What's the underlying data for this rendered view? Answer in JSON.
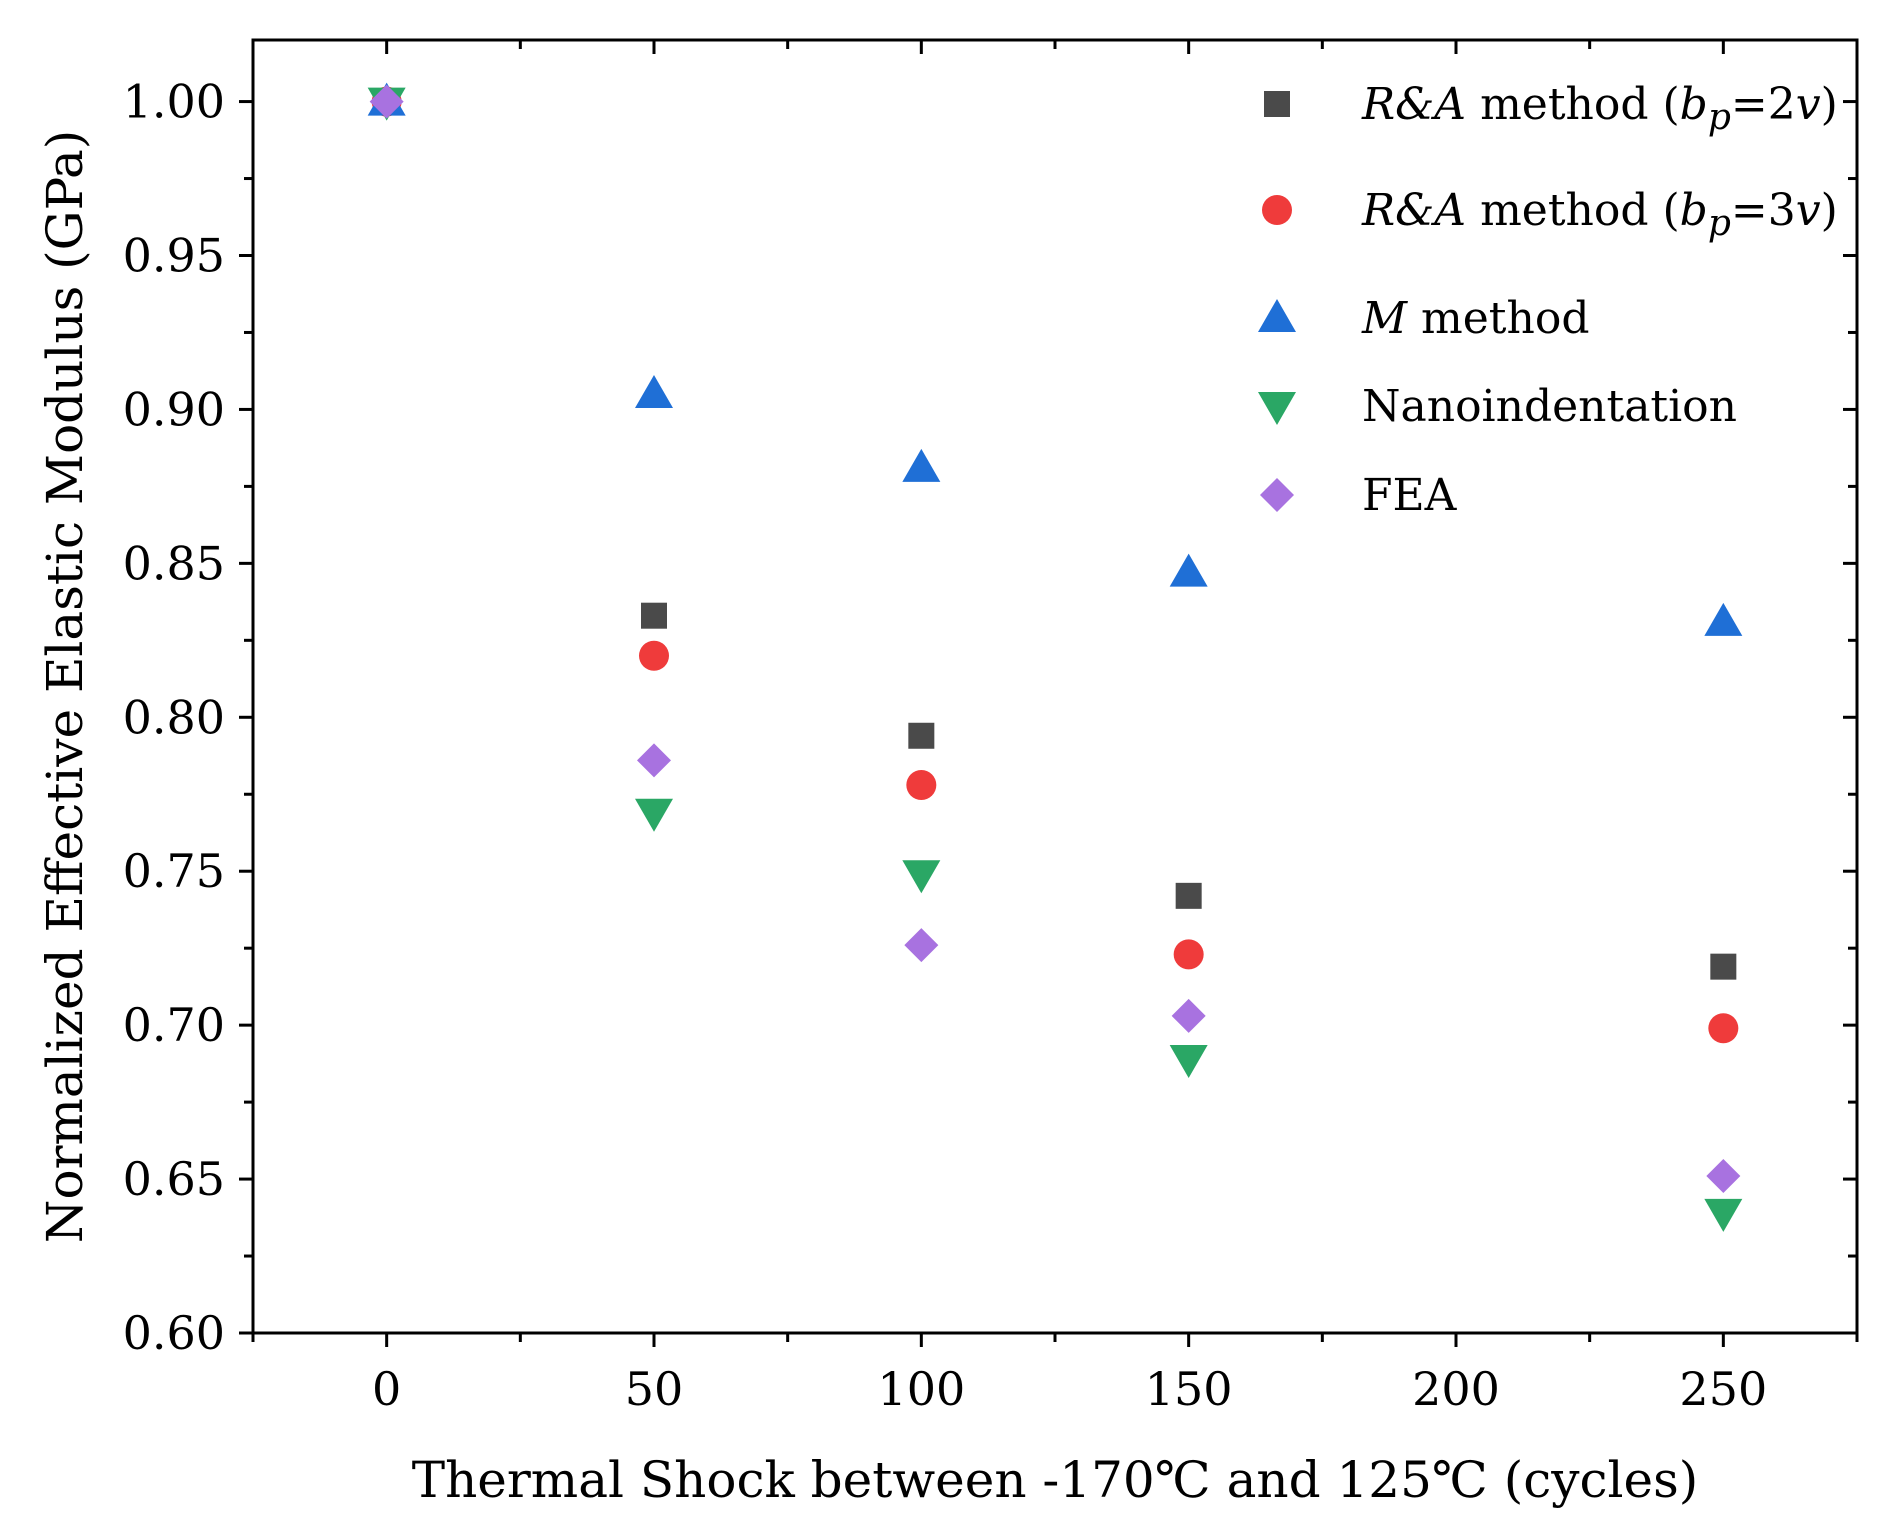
{
  "chart_data": {
    "type": "scatter",
    "title": "",
    "xlabel": "Thermal Shock between -170℃ and 125℃ (cycles)",
    "ylabel": "Normalized Effective Elastic Modulus (GPa)",
    "xlim": [
      -25,
      275
    ],
    "ylim": [
      0.6,
      1.02
    ],
    "x_ticks": [
      0,
      50,
      100,
      150,
      200,
      250
    ],
    "x_tick_labels": [
      "0",
      "50",
      "100",
      "150",
      "200",
      "250"
    ],
    "y_ticks": [
      0.6,
      0.65,
      0.7,
      0.75,
      0.8,
      0.85,
      0.9,
      0.95,
      1.0
    ],
    "y_tick_labels": [
      "0.60",
      "0.65",
      "0.70",
      "0.75",
      "0.80",
      "0.85",
      "0.90",
      "0.95",
      "1.00"
    ],
    "grid": false,
    "legend_position": "top-right",
    "series": [
      {
        "name": "R&A method (bp=2v)",
        "label_parts": [
          {
            "text": "R&A",
            "style": "italic"
          },
          {
            "text": " method (",
            "style": "normal"
          },
          {
            "text": "b",
            "style": "italic"
          },
          {
            "text": "p",
            "style": "italic-sub"
          },
          {
            "text": "=2",
            "style": "normal"
          },
          {
            "text": "v",
            "style": "italic"
          },
          {
            "text": ")",
            "style": "normal"
          }
        ],
        "marker": "square",
        "color": "#4a4a4a",
        "x": [
          0,
          50,
          100,
          150,
          250
        ],
        "y": [
          1.0,
          0.833,
          0.794,
          0.742,
          0.719
        ]
      },
      {
        "name": "R&A method (bp=3v)",
        "label_parts": [
          {
            "text": "R&A",
            "style": "italic"
          },
          {
            "text": " method (",
            "style": "normal"
          },
          {
            "text": "b",
            "style": "italic"
          },
          {
            "text": "p",
            "style": "italic-sub"
          },
          {
            "text": "=3",
            "style": "normal"
          },
          {
            "text": "v",
            "style": "italic"
          },
          {
            "text": ")",
            "style": "normal"
          }
        ],
        "marker": "circle",
        "color": "#ef3b3b",
        "x": [
          0,
          50,
          100,
          150,
          250
        ],
        "y": [
          1.0,
          0.82,
          0.778,
          0.723,
          0.699
        ]
      },
      {
        "name": "M method",
        "label_parts": [
          {
            "text": "M",
            "style": "italic"
          },
          {
            "text": " method",
            "style": "normal"
          }
        ],
        "marker": "triangle-up",
        "color": "#1f6fd6",
        "x": [
          0,
          50,
          100,
          150,
          250
        ],
        "y": [
          1.0,
          0.905,
          0.881,
          0.847,
          0.831
        ]
      },
      {
        "name": "Nanoindentation",
        "label_parts": [
          {
            "text": "Nanoindentation",
            "style": "normal"
          }
        ],
        "marker": "triangle-down",
        "color": "#2aa765",
        "x": [
          0,
          50,
          100,
          150,
          250
        ],
        "y": [
          1.0,
          0.769,
          0.749,
          0.689,
          0.639
        ]
      },
      {
        "name": "FEA",
        "label_parts": [
          {
            "text": "FEA",
            "style": "normal"
          }
        ],
        "marker": "diamond",
        "color": "#a872e0",
        "x": [
          0,
          50,
          100,
          150,
          250
        ],
        "y": [
          1.0,
          0.786,
          0.726,
          0.703,
          0.651
        ]
      }
    ]
  }
}
